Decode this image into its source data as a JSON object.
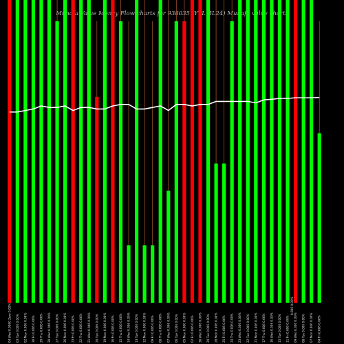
{
  "title": "Munafa Value Money Flow charts for 938035 (YTL BL24) Munafa value charts",
  "colors": {
    "background": "#000000",
    "up": "#00ff00",
    "down": "#ff0000",
    "price_line": "#ffffff",
    "thin_line": "#a0522d",
    "text": "#bbbbbb"
  },
  "chart_data": {
    "type": "bar",
    "title": "Munafa Value Money Flow charts for 938035 (YTL BL24) Munafa value charts",
    "categories": [
      "04 Wed Jun 2025",
      "03 Tue Jun 2025",
      "02 Mon Jun 2025",
      "30 Fri May 2025",
      "29 Thu May 2025",
      "28 Wed May 2025",
      "27 Tue May 2025",
      "26 Mon May 2025",
      "23 Fri May 2025",
      "22 Thu May 2025",
      "21 Wed May 2025",
      "20 Tue May 2025",
      "19 Mon May 2025",
      "16 Fri May 2025",
      "15 Thu May 2025",
      "14 Wed May 2025",
      "13 Tue May 2025",
      "12 Mon May 2025",
      "09 Fri May 2025",
      "08 Thu May 2025",
      "07 Wed May 2025",
      "06 Tue May 2025",
      "05 Mon May 2025",
      "02 Fri May 2025",
      "30 Wed Apr 2025",
      "29 Tue Apr 2025",
      "28 Mon Apr 2025",
      "25 Fri Apr 2025",
      "24 Thu Apr 2025",
      "23 Wed Apr 2025",
      "22 Tue Apr 2025",
      "21 Mon Apr 2025",
      "17 Thu Apr 2025",
      "16 Wed Apr 2025",
      "15 Tue Apr 2025",
      "11 Fri Apr 2025",
      "09 Wed Apr 2025",
      "08 Tue Apr 2025",
      "07 Mon Apr 2025",
      "04 Fri Apr 2025"
    ],
    "bar_colors": [
      "red",
      "green",
      "green",
      "green",
      "green",
      "green",
      "green",
      "green",
      "red",
      "green",
      "green",
      "red",
      "green",
      "red",
      "green",
      "green",
      "green",
      "green",
      "green",
      "green",
      "green",
      "green",
      "red",
      "red",
      "red",
      "green",
      "green",
      "green",
      "green",
      "green",
      "green",
      "green",
      "green",
      "green",
      "green",
      "green",
      "red",
      "green",
      "green",
      "green"
    ],
    "values": [
      1.0,
      1.0,
      1.0,
      1.0,
      1.0,
      1.0,
      0.93,
      1.0,
      1.0,
      1.0,
      1.0,
      0.68,
      1.0,
      1.0,
      0.93,
      0.19,
      1.0,
      0.19,
      0.19,
      1.0,
      0.37,
      0.93,
      0.93,
      1.0,
      1.0,
      1.0,
      0.46,
      0.46,
      0.93,
      1.0,
      1.0,
      1.0,
      1.0,
      1.0,
      1.0,
      1.0,
      1.0,
      1.0,
      1.0,
      0.56
    ],
    "wick_values": [
      1.0,
      1.0,
      1.0,
      1.0,
      1.0,
      1.0,
      1.0,
      1.0,
      1.0,
      1.0,
      1.0,
      0.93,
      1.0,
      1.0,
      1.0,
      0.93,
      1.0,
      1.0,
      0.93,
      1.0,
      1.0,
      1.0,
      1.0,
      1.0,
      1.0,
      1.0,
      1.0,
      1.0,
      1.0,
      1.0,
      1.0,
      1.0,
      1.0,
      1.0,
      1.0,
      1.0,
      1.0,
      1.0,
      0.93,
      0.93
    ],
    "price_line": [
      0.63,
      0.63,
      0.635,
      0.64,
      0.65,
      0.645,
      0.645,
      0.65,
      0.635,
      0.645,
      0.645,
      0.64,
      0.64,
      0.65,
      0.655,
      0.655,
      0.64,
      0.64,
      0.645,
      0.65,
      0.635,
      0.655,
      0.655,
      0.65,
      0.655,
      0.655,
      0.665,
      0.665,
      0.665,
      0.665,
      0.665,
      0.66,
      0.67,
      0.672,
      0.675,
      0.675,
      0.677,
      0.677,
      0.677,
      0.678
    ],
    "tick_labels": [
      "04 Wed 0.0060 Zero 0.00%",
      "03 Tue 0.006 0.00%",
      "02 Mon 0.006 0.00%",
      "30 Fri 0.006 0.00%",
      "29 Thu 0.006 0.00%",
      "28 Wed 0.006 0.00%",
      "27 Tue 0.006 0.00%",
      "26 Mon 0.006 0.00%",
      "23 Fri 0.006 0.00%",
      "22 Thu 0.006 0.00%",
      "21 Wed 0.006 0.00%",
      "20 Tue 0.006 0.00%",
      "19 Mon 0.006 0.00%",
      "16 Fri 0.006 0.00%",
      "15 Thu 0.006 0.00%",
      "14 Wed 0.006 0.00%",
      "13 Tue 0.006 0.00%",
      "12 Mon 0.006 0.00%",
      "09 Fri 0.006 0.00%",
      "08 Thu 0.006 0.00%",
      "07 Wed 0.006 0.00%",
      "06 Tue 0.006 0.00%",
      "05 Mon 0.006 0.00%",
      "02 Fri 0.006 0.00%",
      "30 Wed 0.006 0.00%",
      "29 Tue 0.006 0.00%",
      "28 Mon 0.006 0.00%",
      "25 Fri 0.006 0.00%",
      "24 Thu 0.006 0.00%",
      "23 Wed 0.006 0.00%",
      "22 Tue 0.006 0.00%",
      "21 Mon 0.006 0.00%",
      "17 Thu 0.006 0.00%",
      "16 Wed 0.006 0.00%",
      "15 Tue 0.006 0.00%",
      "11 Fri 0.006 0.00%",
      "09 Wed 0.006 0.00%",
      "08 Tue 0.006 0.00%",
      "07 Mon 0.006 0.00%",
      "04 Fri 0.006 0.00%"
    ],
    "annotation": "0.006 0.00%",
    "xlabel": "",
    "ylabel": "",
    "ylim": [
      0,
      1
    ]
  }
}
